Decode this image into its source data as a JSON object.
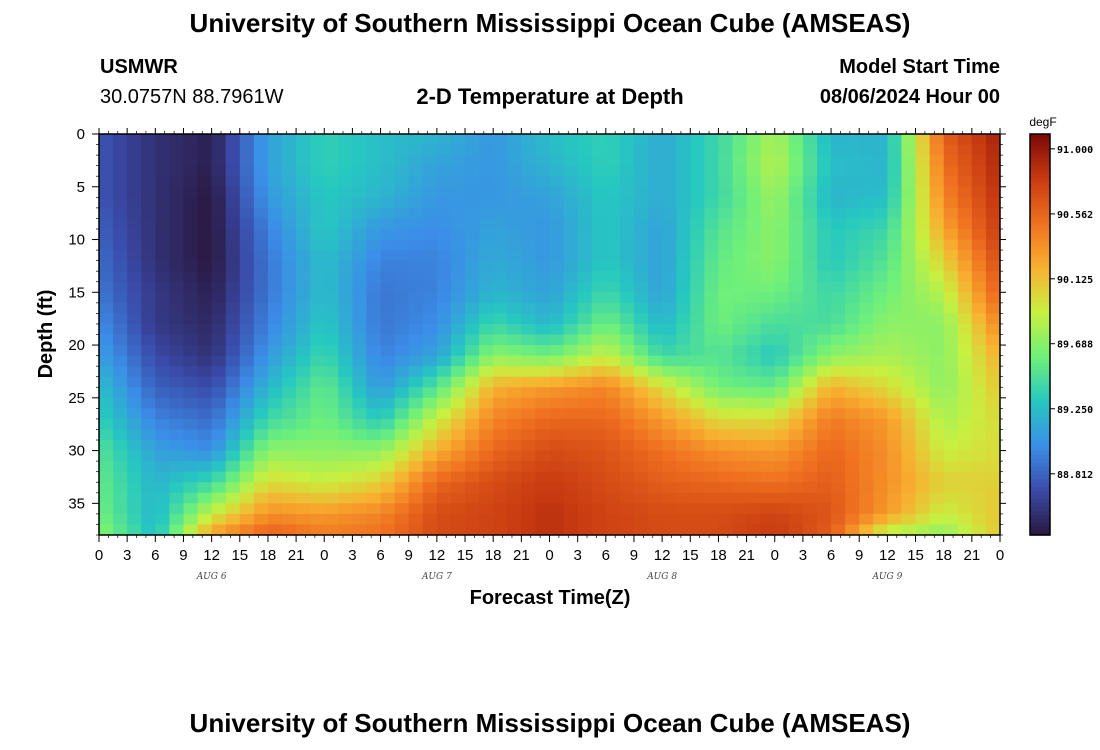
{
  "header": {
    "title": "University of Southern Mississippi Ocean Cube (AMSEAS)",
    "station_id": "USMWR",
    "coordinates": "30.0757N  88.7961W",
    "subtitle": "2-D Temperature at Depth",
    "model_start_label": "Model Start Time",
    "model_start_value": "08/06/2024 Hour 00"
  },
  "footer": {
    "title": "University of Southern Mississippi Ocean Cube (AMSEAS)"
  },
  "chart_data": {
    "type": "heatmap",
    "title": "2-D Temperature at Depth",
    "xlabel": "Forecast Time(Z)",
    "ylabel": "Depth (ft)",
    "x_tick_labels": [
      "0",
      "3",
      "6",
      "9",
      "12",
      "15",
      "18",
      "21",
      "0",
      "3",
      "6",
      "9",
      "12",
      "15",
      "18",
      "21",
      "0",
      "3",
      "6",
      "9",
      "12",
      "15",
      "18",
      "21",
      "0",
      "3",
      "6",
      "9",
      "12",
      "15",
      "18",
      "21",
      "0"
    ],
    "date_labels": [
      "AUG 6",
      "AUG 7",
      "AUG 8",
      "AUG 9"
    ],
    "x_range_hours": [
      0,
      96
    ],
    "y_ticks": [
      0,
      5,
      10,
      15,
      20,
      25,
      30,
      35
    ],
    "ylim_ft": [
      0,
      38
    ],
    "colorbar": {
      "unit": "degF",
      "tick_labels": [
        "91.000",
        "90.562",
        "90.125",
        "89.688",
        "89.250",
        "88.812"
      ],
      "tick_values": [
        91.0,
        90.562,
        90.125,
        89.688,
        89.25,
        88.812
      ],
      "range": [
        88.4,
        91.1
      ],
      "colors": [
        "#2a1840",
        "#3a4aa8",
        "#3b8ee8",
        "#26c8c0",
        "#6ff07a",
        "#c8f040",
        "#f8b030",
        "#f07020",
        "#c83a10",
        "#7a0808"
      ]
    },
    "depth_levels_ft": [
      0,
      3,
      6,
      9,
      12,
      15,
      18,
      21,
      24,
      27,
      30,
      33,
      36,
      38
    ],
    "time_hours": [
      0,
      6,
      12,
      18,
      24,
      30,
      36,
      42,
      48,
      54,
      60,
      66,
      72,
      78,
      84,
      90,
      96
    ],
    "temperature_degF": [
      [
        88.75,
        88.55,
        88.45,
        89.1,
        89.35,
        89.25,
        89.2,
        89.05,
        89.25,
        89.35,
        89.15,
        89.4,
        89.8,
        89.2,
        89.2,
        90.6,
        90.95
      ],
      [
        88.75,
        88.55,
        88.45,
        89.1,
        89.35,
        89.25,
        89.1,
        89.05,
        89.2,
        89.35,
        89.15,
        89.4,
        89.85,
        89.25,
        89.2,
        90.5,
        90.9
      ],
      [
        88.75,
        88.55,
        88.4,
        89.05,
        89.3,
        89.2,
        89.05,
        89.05,
        89.1,
        89.3,
        89.15,
        89.4,
        89.75,
        89.2,
        89.25,
        90.4,
        90.85
      ],
      [
        88.8,
        88.55,
        88.4,
        88.95,
        89.3,
        89.05,
        89.0,
        89.1,
        89.05,
        89.3,
        89.1,
        89.5,
        89.7,
        89.3,
        89.4,
        90.25,
        90.8
      ],
      [
        88.85,
        88.55,
        88.4,
        88.9,
        89.25,
        88.95,
        88.95,
        89.15,
        89.05,
        89.3,
        89.1,
        89.55,
        89.7,
        89.3,
        89.5,
        90.05,
        90.7
      ],
      [
        88.9,
        88.6,
        88.45,
        88.9,
        89.25,
        88.9,
        88.95,
        89.2,
        89.1,
        89.4,
        89.1,
        89.6,
        89.6,
        89.4,
        89.6,
        89.85,
        90.6
      ],
      [
        89.0,
        88.6,
        88.5,
        88.95,
        89.3,
        88.9,
        89.0,
        89.4,
        89.2,
        89.6,
        89.2,
        89.6,
        89.45,
        89.45,
        89.7,
        89.7,
        90.4
      ],
      [
        89.1,
        88.7,
        88.55,
        89.05,
        89.4,
        88.95,
        89.1,
        89.7,
        89.6,
        89.9,
        89.4,
        89.5,
        89.3,
        89.7,
        89.8,
        89.7,
        90.2
      ],
      [
        89.25,
        88.8,
        88.7,
        89.2,
        89.55,
        89.05,
        89.5,
        90.2,
        90.3,
        90.4,
        90.0,
        89.6,
        89.55,
        90.2,
        90.0,
        89.7,
        90.1
      ],
      [
        89.35,
        88.95,
        88.85,
        89.4,
        89.6,
        89.3,
        89.9,
        90.4,
        90.55,
        90.55,
        90.3,
        90.0,
        90.0,
        90.45,
        90.3,
        89.8,
        90.0
      ],
      [
        89.5,
        89.1,
        89.0,
        89.7,
        89.7,
        89.7,
        90.2,
        90.55,
        90.7,
        90.65,
        90.5,
        90.35,
        90.3,
        90.55,
        90.35,
        89.9,
        90.0
      ],
      [
        89.55,
        89.2,
        89.4,
        90.0,
        89.9,
        90.05,
        90.55,
        90.7,
        90.8,
        90.7,
        90.6,
        90.55,
        90.5,
        90.6,
        90.35,
        90.05,
        90.05
      ],
      [
        89.6,
        89.2,
        89.9,
        90.35,
        90.3,
        90.4,
        90.7,
        90.75,
        90.85,
        90.75,
        90.7,
        90.7,
        90.75,
        90.65,
        90.3,
        89.9,
        90.1
      ],
      [
        89.7,
        89.25,
        90.3,
        90.6,
        90.45,
        90.5,
        90.7,
        90.75,
        90.85,
        90.75,
        90.7,
        90.7,
        90.8,
        90.6,
        89.8,
        89.7,
        90.1
      ]
    ]
  }
}
